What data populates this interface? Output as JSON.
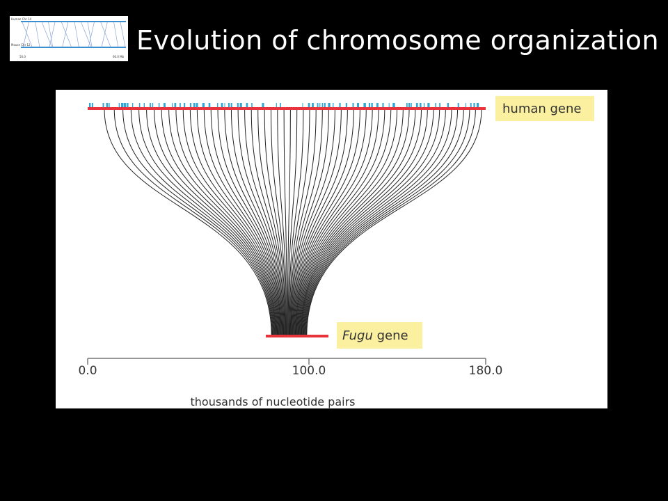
{
  "slide": {
    "title": "Evolution of chromosome organization"
  },
  "thumbnail": {
    "human_label": "Human Chr 14",
    "mouse_label": "Mouse Chr 12",
    "left_value": "50.0",
    "right_value": "60.0 Mb"
  },
  "figure": {
    "human_label": "human gene",
    "fugu_label_italic": "Fugu",
    "fugu_label_rest": " gene",
    "axis_label": "thousands of nucleotide pairs",
    "ticks": [
      {
        "value": 0,
        "label": "0.0"
      },
      {
        "value": 100,
        "label": "100.0"
      },
      {
        "value": 180,
        "label": "180.0"
      }
    ],
    "human_span_kb": [
      0,
      180
    ],
    "fugu_span_kb": [
      80,
      106
    ],
    "colors": {
      "human_bar": "#e8323c",
      "fugu_bar": "#e8323c",
      "exon_marks": "#2fa8d8",
      "label_box": "#fbf0a0",
      "connection_lines": "#222222"
    }
  }
}
